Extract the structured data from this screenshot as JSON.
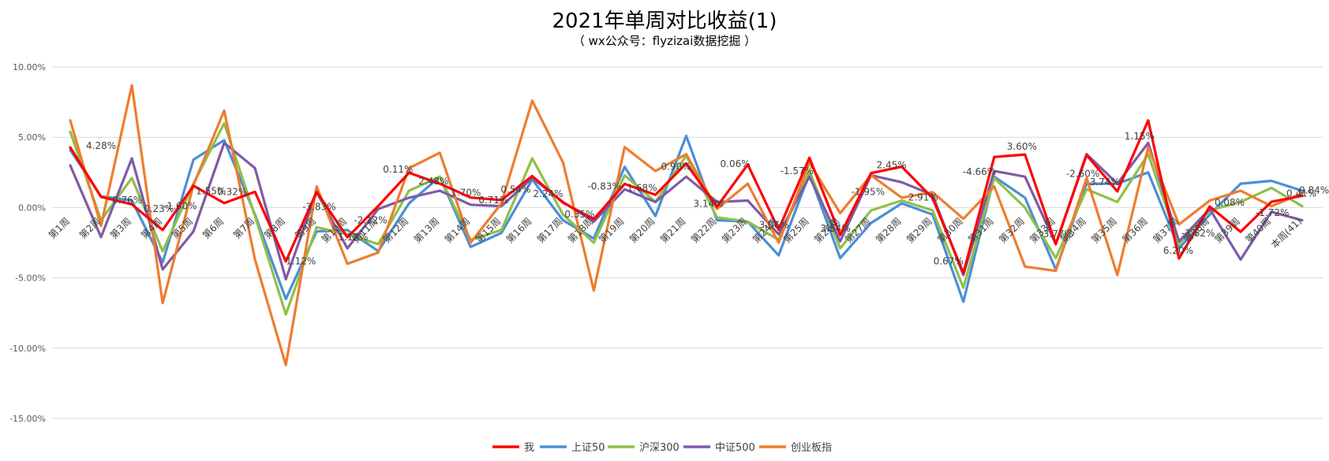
{
  "chart_data": {
    "type": "line",
    "title": "2021年单周对比收益(1)",
    "subtitle": "（ wx公众号：flyzizai数据挖掘 ）",
    "categories": [
      "第1周",
      "第2周",
      "第3周",
      "第4周",
      "第5周",
      "第6周",
      "第7周",
      "第8周",
      "第9周",
      "第10周",
      "第11周",
      "第12周",
      "第13周",
      "第14周",
      "第15周",
      "第16周",
      "第17周",
      "第18周",
      "第19周",
      "第20周",
      "第21周",
      "第22周",
      "第23周",
      "第24周",
      "第25周",
      "第26周",
      "第27周",
      "第28周",
      "第29周",
      "第30周",
      "第31周",
      "第32周",
      "第33周",
      "第34周",
      "第35周",
      "第36周",
      "第37周",
      "第38周",
      "第39周",
      "第40周",
      "本周(41)"
    ],
    "yticks": [
      "10.00%",
      "5.00%",
      "0.00%",
      "-5.00%",
      "-10.00%",
      "-15.00%"
    ],
    "ylim": [
      -15,
      10
    ],
    "series": [
      {
        "name": "我",
        "color": "#ff0000",
        "values": [
          4.28,
          0.76,
          0.23,
          -1.6,
          1.55,
          0.32,
          1.12,
          -3.83,
          1.12,
          -2.12,
          0.11,
          2.48,
          1.7,
          0.71,
          0.54,
          2.24,
          0.35,
          -0.83,
          1.68,
          0.9,
          3.14,
          0.06,
          3.06,
          -1.57,
          3.54,
          -1.95,
          2.45,
          2.91,
          0.67,
          -4.66,
          3.6,
          3.77,
          -2.6,
          3.74,
          1.15,
          6.2,
          -3.62,
          0.08,
          -1.72,
          0.41,
          0.84
        ]
      },
      {
        "name": "上证50",
        "color": "#4a8fd6",
        "values": [
          4.1,
          0.8,
          0.5,
          -3.9,
          3.4,
          4.8,
          -0.5,
          -6.5,
          -1.7,
          -1.6,
          -3.1,
          0.3,
          2.2,
          -2.8,
          -1.8,
          2.0,
          -0.9,
          -2.2,
          2.9,
          -0.6,
          5.1,
          -0.9,
          -1.0,
          -3.4,
          2.4,
          -3.6,
          -1.1,
          0.3,
          -0.5,
          -6.7,
          2.2,
          0.7,
          -4.4,
          1.7,
          1.7,
          2.5,
          -2.9,
          -0.5,
          1.7,
          1.9,
          1.2
        ]
      },
      {
        "name": "沪深300",
        "color": "#8fbf4a",
        "values": [
          5.4,
          -0.9,
          2.1,
          -3.1,
          1.7,
          6.0,
          -0.6,
          -7.6,
          -1.4,
          -1.9,
          -2.6,
          1.2,
          2.2,
          -2.3,
          -1.6,
          3.5,
          -0.5,
          -2.5,
          2.3,
          0.4,
          3.7,
          -0.7,
          -1.0,
          -2.3,
          2.6,
          -2.9,
          -0.2,
          0.5,
          -0.2,
          -5.7,
          2.1,
          0.0,
          -3.6,
          1.3,
          0.4,
          3.8,
          -2.6,
          -0.2,
          0.4,
          1.4,
          0.1
        ]
      },
      {
        "name": "中证500",
        "color": "#7f5aa6",
        "values": [
          3.0,
          -2.1,
          3.5,
          -4.4,
          -1.7,
          4.6,
          2.8,
          -5.1,
          1.1,
          -2.9,
          -0.1,
          0.7,
          1.2,
          0.2,
          0.1,
          2.1,
          0.4,
          -1.0,
          1.3,
          0.4,
          2.2,
          0.4,
          0.5,
          -1.9,
          2.2,
          -2.4,
          2.3,
          1.8,
          0.9,
          -4.8,
          2.6,
          2.2,
          -2.6,
          3.8,
          1.7,
          4.6,
          -2.4,
          -0.1,
          -3.7,
          -0.3,
          -0.9
        ]
      },
      {
        "name": "创业板指",
        "color": "#ee7d2e",
        "values": [
          6.2,
          -1.3,
          8.7,
          -6.8,
          1.6,
          6.9,
          -3.7,
          -11.2,
          1.5,
          -4.0,
          -3.2,
          2.8,
          3.9,
          -2.5,
          0.3,
          7.6,
          3.2,
          -5.9,
          4.3,
          2.6,
          3.8,
          -0.1,
          1.7,
          -2.5,
          3.2,
          -0.4,
          2.3,
          0.7,
          1.1,
          -0.8,
          1.5,
          -4.2,
          -4.5,
          2.1,
          -4.8,
          4.3,
          -1.2,
          0.5,
          1.2,
          0.1,
          1.0
        ]
      }
    ],
    "data_labels": [
      {
        "text": "4.28%",
        "i": 0,
        "dx": 20,
        "dy": 2
      },
      {
        "text": "0.76%",
        "i": 1,
        "dx": 14,
        "dy": 8
      },
      {
        "text": "0.23%",
        "i": 3,
        "dx": -24,
        "dy": -23
      },
      {
        "text": "-1.60%",
        "i": 4,
        "dx": -38,
        "dy": 30
      },
      {
        "text": "1.55%",
        "i": 5,
        "dx": -36,
        "dy": -11
      },
      {
        "text": "0.32%",
        "i": 6,
        "dx": -48,
        "dy": 4
      },
      {
        "text": "1.12%",
        "i": 7,
        "dx": 0,
        "dy": 4
      },
      {
        "text": "-3.83%",
        "i": 8,
        "dx": -18,
        "dy": 23
      },
      {
        "text": "1.12%",
        "i": 9,
        "dx": -12,
        "dy": 4
      },
      {
        "text": "-2.12%",
        "i": 10,
        "dx": -31,
        "dy": 22
      },
      {
        "text": "0.11%",
        "i": 11,
        "dx": -33,
        "dy": 0
      },
      {
        "text": "2.48%",
        "i": 12,
        "dx": -27,
        "dy": 1
      },
      {
        "text": "1.70%",
        "i": 13,
        "dx": -25,
        "dy": -2
      },
      {
        "text": "0.71%",
        "i": 14,
        "dx": -29,
        "dy": 4
      },
      {
        "text": "0.54%",
        "i": 15,
        "dx": -40,
        "dy": 21
      },
      {
        "text": "2.24%",
        "i": 16,
        "dx": -38,
        "dy": -7
      },
      {
        "text": "0.35%",
        "i": 17,
        "dx": -37,
        "dy": -2
      },
      {
        "text": "-0.83%",
        "i": 18,
        "dx": -47,
        "dy": 7
      },
      {
        "text": "1.68%",
        "i": 19,
        "dx": -36,
        "dy": -5
      },
      {
        "text": "0.90%",
        "i": 20,
        "dx": -32,
        "dy": 8
      },
      {
        "text": "3.14%",
        "i": 21,
        "dx": -30,
        "dy": 0
      },
      {
        "text": "0.06%",
        "i": 22,
        "dx": -35,
        "dy": 3
      },
      {
        "text": "3.06%",
        "i": 23,
        "dx": -25,
        "dy": -2
      },
      {
        "text": "-1.57%",
        "i": 24,
        "dx": -37,
        "dy": 21
      },
      {
        "text": "3.54%",
        "i": 25,
        "dx": -25,
        "dy": -4
      },
      {
        "text": "-1.95%",
        "i": 26,
        "dx": -25,
        "dy": 28
      },
      {
        "text": "2.45%",
        "i": 27,
        "dx": -32,
        "dy": 2
      },
      {
        "text": "2.91%",
        "i": 28,
        "dx": -31,
        "dy": 3
      },
      {
        "text": "0.67%",
        "i": 29,
        "dx": -38,
        "dy": -11
      },
      {
        "text": "-4.66%",
        "i": 30,
        "dx": -40,
        "dy": 23
      },
      {
        "text": "3.60%",
        "i": 31,
        "dx": -23,
        "dy": -6
      },
      {
        "text": "3.77%",
        "i": 32,
        "dx": -16,
        "dy": -9
      },
      {
        "text": "-2.60%",
        "i": 33,
        "dx": -26,
        "dy": 28
      },
      {
        "text": "3.74%",
        "i": 34,
        "dx": -35,
        "dy": -8
      },
      {
        "text": "1.15%",
        "i": 35,
        "dx": -30,
        "dy": 24
      },
      {
        "text": "6.20%",
        "i": 36,
        "dx": -20,
        "dy": -6
      },
      {
        "text": "-3.62%",
        "i": 37,
        "dx": -36,
        "dy": 38
      },
      {
        "text": "0.08%",
        "i": 38,
        "dx": -33,
        "dy": -33
      },
      {
        "text": "-1.72%",
        "i": 39,
        "dx": -20,
        "dy": 18
      },
      {
        "text": "0.41%",
        "i": 40,
        "dx": -20,
        "dy": 1
      },
      {
        "text": "0.84%",
        "i": 40,
        "dx": -4,
        "dy": -3
      }
    ]
  }
}
